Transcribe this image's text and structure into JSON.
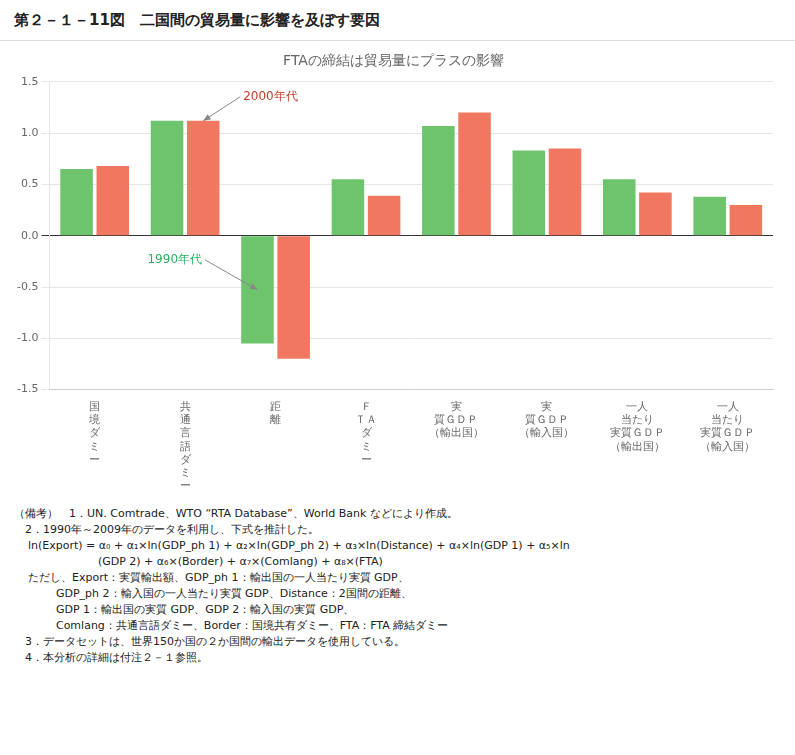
{
  "chart_data": {
    "type": "bar",
    "title": "第２－１－11図　二国間の貿易量に影響を及ぼす要因",
    "subtitle": "FTAの締結は貿易量にプラスの影響",
    "categories": [
      "国\n境\nダ\nミ\nー",
      "共\n通\n言\n語\nダ\nミ\nー",
      "距\n離",
      "Ｆ\nＴＡ\nダ\nミ\nー",
      "実\n質ＧＤＰ\n（輸出国）",
      "実\n質ＧＤＰ\n（輸入国）",
      "一人\n当たり\n実質ＧＤＰ\n（輸出国）",
      "一人\n当たり\n実質ＧＤＰ\n（輸入国）"
    ],
    "series": [
      {
        "name": "1990年代",
        "color": "#6dc46d",
        "values": [
          0.65,
          1.12,
          -1.05,
          0.55,
          1.07,
          0.83,
          0.55,
          0.38
        ]
      },
      {
        "name": "2000年代",
        "color": "#f07860",
        "values": [
          0.68,
          1.12,
          -1.2,
          0.39,
          1.2,
          0.85,
          0.42,
          0.3
        ]
      }
    ],
    "ylim": [
      -1.5,
      1.5
    ],
    "yticks": [
      -1.5,
      {
        "value": -1.0,
        "label": "-1.0"
      },
      -0.5,
      {
        "value": 0.0,
        "label": "0.0"
      },
      0.5,
      {
        "value": 1.0,
        "label": "1.0"
      },
      1.5
    ],
    "grid": true,
    "annotations": [
      {
        "text": "2000年代",
        "color": "#c0392b",
        "series": "2000年代",
        "category": "共\n通\n言\n語\nダ\nミ\nー"
      },
      {
        "text": "1990年代",
        "color": "#27ae60",
        "series": "1990年代",
        "category": "距\n離"
      }
    ],
    "notes": [
      "（備考）　1．UN. Comtrade、WTO “RTA Database”、World Bank などにより作成。",
      "　2．1990年～2009年のデータを利用し、下式を推計した。",
      "    ln(Export) = α₀ + α₁×ln(GDP_ph 1) + α₂×ln(GDP_ph 2) + α₃×ln(Distance) + α₄×ln(GDP 1) + α₅×ln",
      "                        (GDP 2) + α₆×(Border) + α₇×(Comlang) + α₈×(FTA)",
      "    ただし、Export：実質輸出額、GDP_ph 1：輸出国の一人当たり実質 GDP、",
      "            GDP_ph 2：輸入国の一人当たり実質 GDP、Distance：2国間の距離、",
      "            GDP 1：輸出国の実質 GDP、GDP 2：輸入国の実質 GDP、",
      "            Comlang：共通言語ダミー、Border：国境共有ダミー、FTA：FTA 締結ダミー",
      "　3．データセットは、世界150か国の２か国間の輸出データを使用している。",
      "　4．本分析の詳細は付注２－１参照。"
    ]
  }
}
